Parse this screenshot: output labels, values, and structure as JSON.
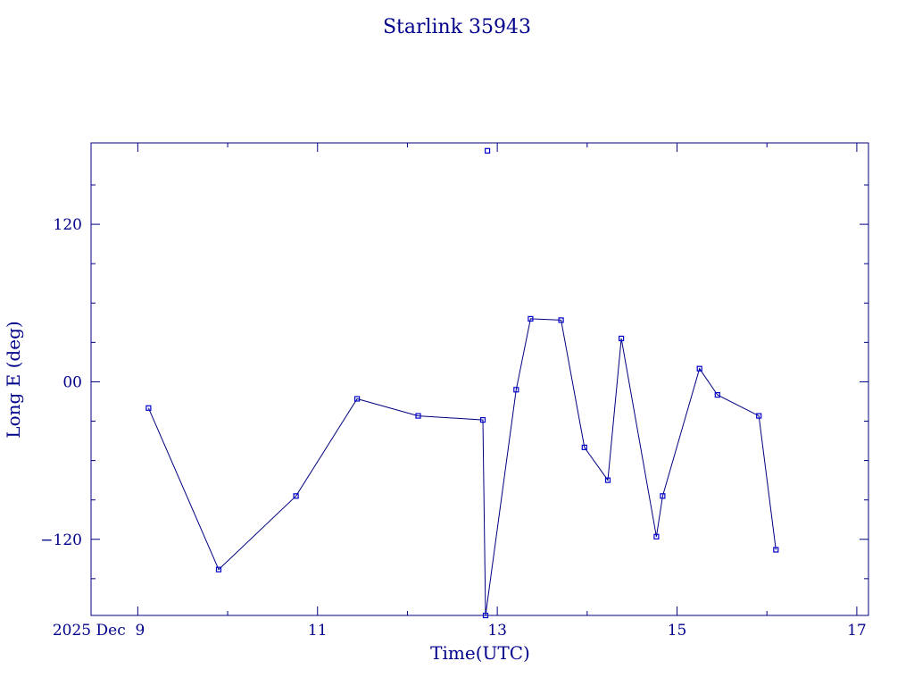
{
  "chart_data": {
    "type": "line",
    "title": "Starlink 35943",
    "xlabel": "Time(UTC)",
    "ylabel": "Long E (deg)",
    "xlim": [
      "2025-12-08.48",
      "2025-12-17.13"
    ],
    "ylim": [
      -178,
      182
    ],
    "grid": false,
    "x_tick_labels": [
      "2025 Dec  9",
      "11",
      "13",
      "15",
      "17"
    ],
    "x_ticks_major": [
      "2025-12-09",
      "2025-12-11",
      "2025-12-13",
      "2025-12-15",
      "2025-12-17"
    ],
    "x_ticks_minor": [
      "2025-12-10",
      "2025-12-12",
      "2025-12-14",
      "2025-12-16"
    ],
    "y_tick_labels": [
      "120",
      "00",
      "−120"
    ],
    "y_ticks_major": [
      120,
      0,
      -120
    ],
    "y_ticks_minor": [
      150,
      90,
      60,
      30,
      -30,
      -60,
      -90,
      -150
    ],
    "series": [
      {
        "marker": "square",
        "color": "#000080",
        "x": [
          "2025-12-09.12",
          "2025-12-09.90",
          "2025-12-10.76",
          "2025-12-11.44",
          "2025-12-12.12",
          "2025-12-12.84",
          "2025-12-12.87",
          "2025-12-13.21",
          "2025-12-13.37",
          "2025-12-13.71",
          "2025-12-13.97",
          "2025-12-14.23",
          "2025-12-14.38",
          "2025-12-14.77",
          "2025-12-14.84",
          "2025-12-15.25",
          "2025-12-15.45",
          "2025-12-15.91",
          "2025-12-16.10"
        ],
        "y": [
          -20,
          -143,
          -87,
          -13,
          -26,
          -29,
          -178,
          -6,
          48,
          47,
          -50,
          -75,
          33,
          -118,
          -87,
          10,
          -10,
          -26,
          -128
        ]
      }
    ],
    "extra_points": [
      {
        "x": "2025-12-12.89",
        "y": 176
      }
    ]
  }
}
